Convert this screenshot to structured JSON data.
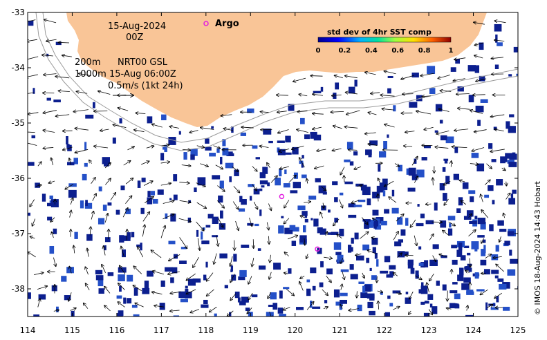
{
  "map": {
    "lon_range": [
      114,
      125
    ],
    "lat_range": [
      -38.5,
      -33
    ],
    "x_ticks": [
      "114",
      "115",
      "116",
      "117",
      "118",
      "119",
      "120",
      "121",
      "122",
      "123",
      "124",
      "125"
    ],
    "y_ticks": [
      "-33",
      "-34",
      "-35",
      "-36",
      "-37",
      "-38"
    ],
    "land_color": "#f9c597",
    "field_dark_color": "#0c1f8f",
    "field_mid_color": "#2450c8",
    "vector_color": "#000000",
    "contour_color": "#9a9a9a"
  },
  "annotations": {
    "date": "15-Aug-2024",
    "hour": "00Z",
    "depth_200": "200m",
    "product": "NRT00 GSL",
    "depth_1000": "1000m",
    "product_time": "15-Aug 06:00Z",
    "scale": "0.5m/s (1kt 24h)"
  },
  "argo": {
    "label": "Argo",
    "color": "#e21de0",
    "floats": [
      {
        "lon": 119.7,
        "lat": -36.33
      },
      {
        "lon": 120.5,
        "lat": -37.28
      }
    ]
  },
  "colorbar": {
    "title": "std dev of 4hr SST comp",
    "ticks": [
      "0",
      "0.2",
      "0.4",
      "0.6",
      "0.8",
      "1"
    ]
  },
  "credit": "© IMOS 18-Aug-2024 14:43 Hobart"
}
